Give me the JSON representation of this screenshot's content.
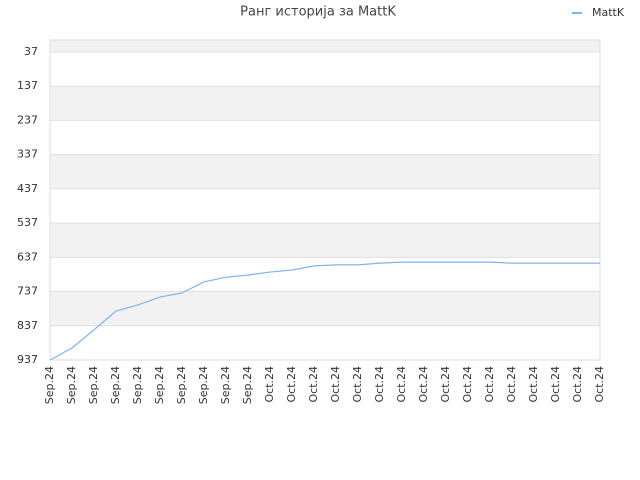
{
  "chart_data": {
    "type": "line",
    "title": "Ранг историја за MattK",
    "categories": [
      "Sep.24",
      "Sep.24",
      "Sep.24",
      "Sep.24",
      "Sep.24",
      "Sep.24",
      "Sep.24",
      "Sep.24",
      "Sep.24",
      "Sep.24",
      "Oct.24",
      "Oct.24",
      "Oct.24",
      "Oct.24",
      "Oct.24",
      "Oct.24",
      "Oct.24",
      "Oct.24",
      "Oct.24",
      "Oct.24",
      "Oct.24",
      "Oct.24",
      "Oct.24",
      "Oct.24",
      "Oct.24",
      "Oct.24"
    ],
    "series": [
      {
        "name": "MattK",
        "color": "#7cb5ec",
        "values": [
          937,
          902,
          849,
          794,
          776,
          753,
          741,
          709,
          695,
          689,
          680,
          674,
          662,
          659,
          659,
          654,
          651,
          651,
          651,
          651,
          651,
          654,
          654,
          654,
          654,
          654
        ]
      }
    ],
    "ylim": [
      937,
      2
    ],
    "yticks": [
      37,
      137,
      237,
      337,
      437,
      537,
      637,
      737,
      837,
      937
    ],
    "grid": true,
    "legend": "top-right"
  }
}
